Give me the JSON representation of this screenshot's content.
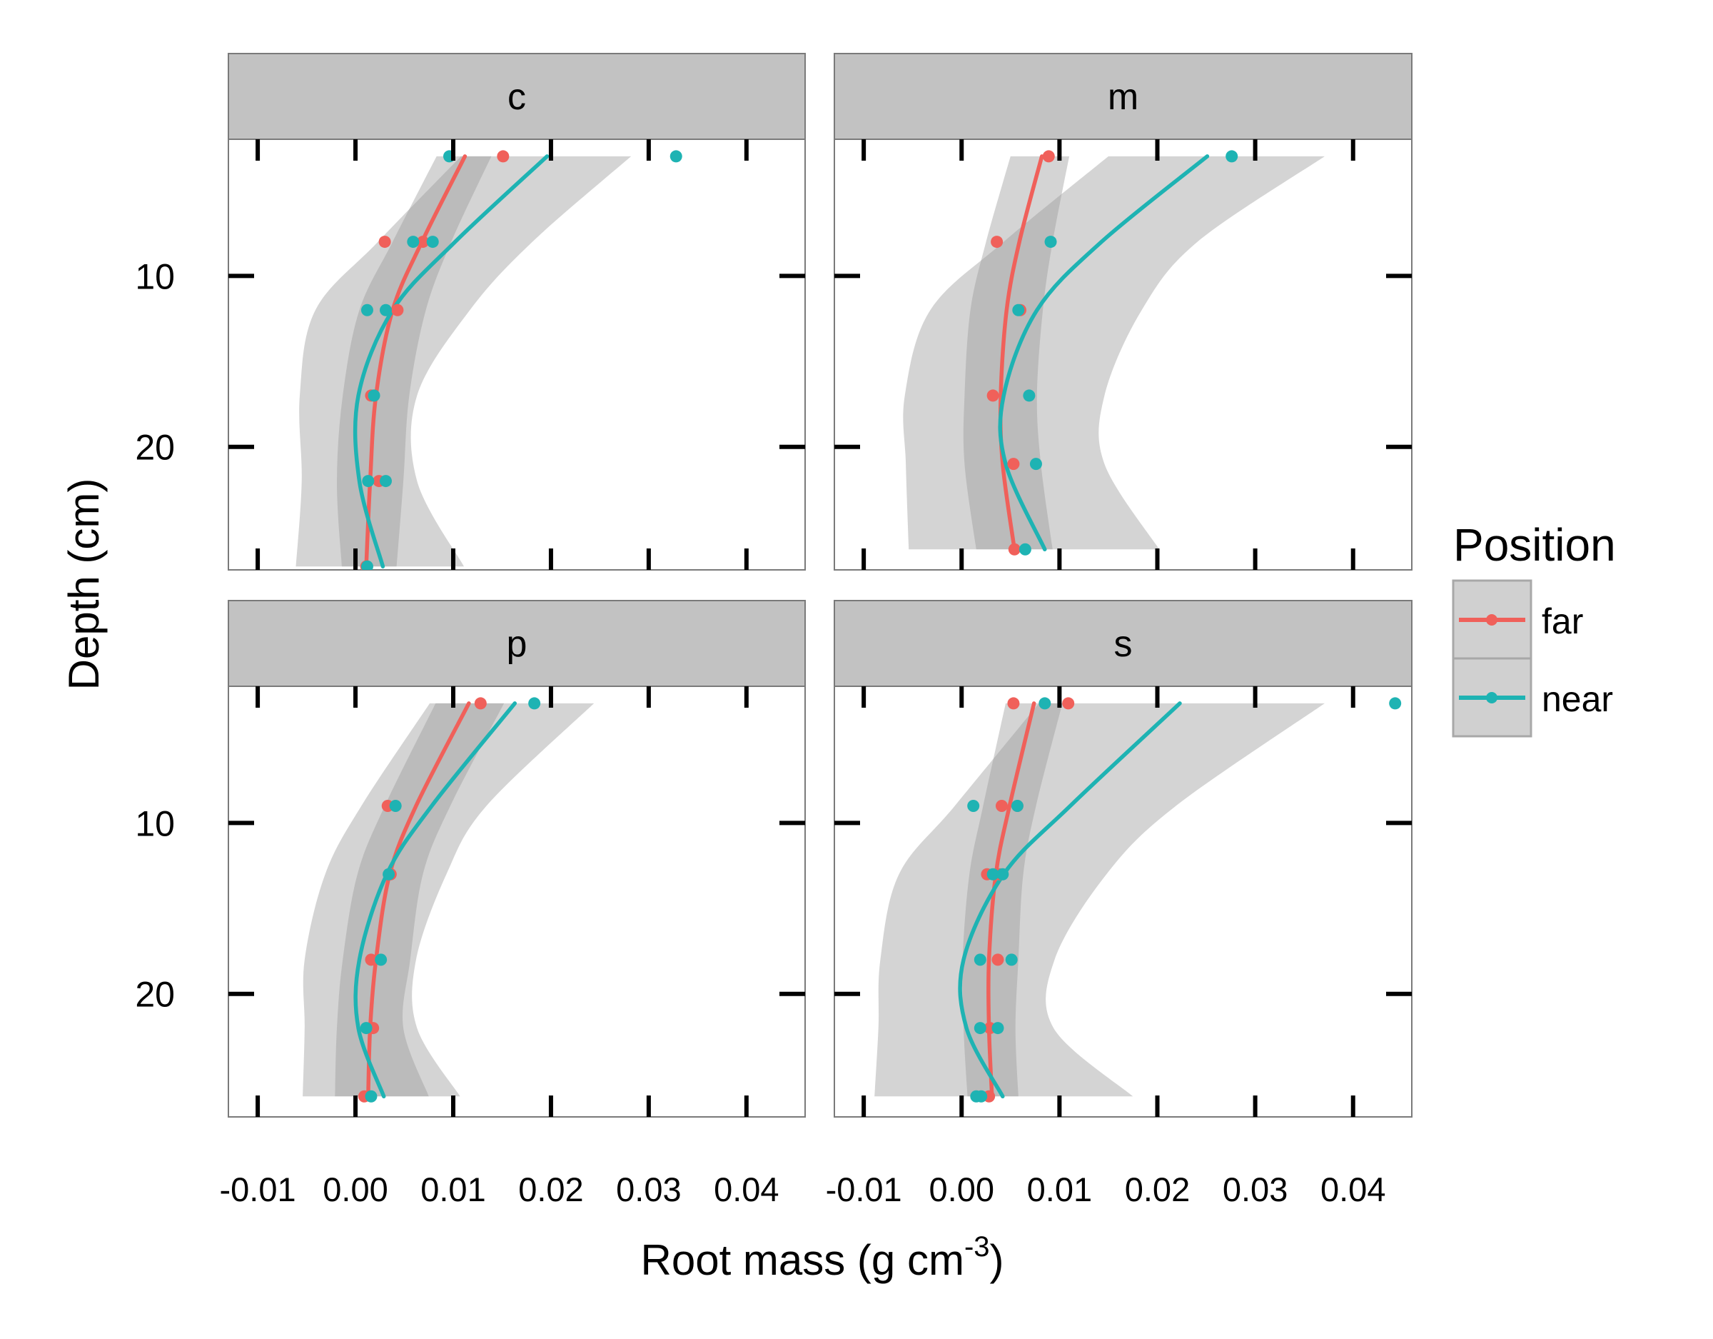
{
  "chart_data": {
    "type": "scatter",
    "xlabel_main": "Root mass (g cm",
    "xlabel_sup": "-3",
    "xlabel_close": ")",
    "ylabel": "Depth (cm)",
    "xlim": [
      -0.013,
      0.046
    ],
    "ylim": [
      2,
      27.2
    ],
    "y_reversed": true,
    "x_ticks": [
      -0.01,
      0.0,
      0.01,
      0.02,
      0.03,
      0.04
    ],
    "x_tick_labels": [
      "-0.01",
      "0.00",
      "0.01",
      "0.02",
      "0.03",
      "0.04"
    ],
    "y_ticks": [
      10,
      20
    ],
    "y_tick_labels": [
      "10",
      "20"
    ],
    "legend": {
      "title": "Position",
      "placement": "right",
      "entries": [
        {
          "label": "far",
          "color": "#F0605A"
        },
        {
          "label": "near",
          "color": "#1EB3B3"
        }
      ]
    },
    "colors": {
      "far": "#F0605A",
      "near": "#1EB3B3",
      "ribbon": "#999999",
      "strip": "#C2C2C2"
    },
    "panels": [
      {
        "label": "c",
        "far": {
          "points": [
            [
              0.0151,
              3
            ],
            [
              0.003,
              8
            ],
            [
              0.0069,
              8
            ],
            [
              0.0043,
              12
            ],
            [
              0.0016,
              17
            ],
            [
              0.0024,
              22
            ],
            [
              0.0011,
              27
            ]
          ],
          "fit": [
            [
              0.0112,
              3
            ],
            [
              0.0068,
              8
            ],
            [
              0.0038,
              12
            ],
            [
              0.0021,
              17
            ],
            [
              0.0015,
              22
            ],
            [
              0.0011,
              27
            ]
          ],
          "ribbon": [
            [
              0.0083,
              0.0139
            ],
            [
              0.0038,
              0.0098
            ],
            [
              0.0004,
              0.0072
            ],
            [
              -0.0013,
              0.0055
            ],
            [
              -0.0019,
              0.0049
            ],
            [
              -0.0014,
              0.0042
            ]
          ]
        },
        "near": {
          "points": [
            [
              0.0096,
              3
            ],
            [
              0.0328,
              3
            ],
            [
              0.0059,
              8
            ],
            [
              0.0079,
              8
            ],
            [
              0.0012,
              12
            ],
            [
              0.0031,
              12
            ],
            [
              0.0019,
              17
            ],
            [
              0.0013,
              22
            ],
            [
              0.0031,
              22
            ],
            [
              0.0012,
              27
            ]
          ],
          "fit": [
            [
              0.0196,
              3
            ],
            [
              0.0102,
              8
            ],
            [
              0.0038,
              12
            ],
            [
              0.0003,
              17
            ],
            [
              0.0004,
              22
            ],
            [
              0.0028,
              27
            ]
          ],
          "ribbon": [
            [
              0.0108,
              0.0282
            ],
            [
              0.0023,
              0.0181
            ],
            [
              -0.0041,
              0.0117
            ],
            [
              -0.0057,
              0.0063
            ],
            [
              -0.0055,
              0.0063
            ],
            [
              -0.0061,
              0.0111
            ]
          ]
        }
      },
      {
        "label": "m",
        "far": {
          "points": [
            [
              0.0089,
              3
            ],
            [
              0.0036,
              8
            ],
            [
              0.006,
              12
            ],
            [
              0.0032,
              17
            ],
            [
              0.0053,
              21
            ],
            [
              0.0054,
              26
            ]
          ],
          "fit": [
            [
              0.0082,
              3
            ],
            [
              0.0059,
              8
            ],
            [
              0.0046,
              12
            ],
            [
              0.004,
              17
            ],
            [
              0.0042,
              21
            ],
            [
              0.0054,
              26
            ]
          ],
          "ribbon": [
            [
              0.005,
              0.011
            ],
            [
              0.0025,
              0.0093
            ],
            [
              0.0009,
              0.0083
            ],
            [
              0.0003,
              0.0077
            ],
            [
              0.0003,
              0.0081
            ],
            [
              0.0015,
              0.0093
            ]
          ]
        },
        "near": {
          "points": [
            [
              0.0276,
              3
            ],
            [
              0.0091,
              8
            ],
            [
              0.0058,
              12
            ],
            [
              0.0069,
              17
            ],
            [
              0.0076,
              21
            ],
            [
              0.0065,
              26
            ]
          ],
          "fit": [
            [
              0.0251,
              3
            ],
            [
              0.0143,
              8
            ],
            [
              0.0077,
              12
            ],
            [
              0.0043,
              17
            ],
            [
              0.0045,
              21
            ],
            [
              0.0085,
              26
            ]
          ],
          "ribbon": [
            [
              0.015,
              0.0371
            ],
            [
              0.0043,
              0.0241
            ],
            [
              -0.0032,
              0.0184
            ],
            [
              -0.0058,
              0.0146
            ],
            [
              -0.0057,
              0.0146
            ],
            [
              -0.0054,
              0.0202
            ]
          ]
        }
      },
      {
        "label": "p",
        "far": {
          "points": [
            [
              0.0128,
              3
            ],
            [
              0.0033,
              9
            ],
            [
              0.0036,
              13
            ],
            [
              0.0016,
              18
            ],
            [
              0.0018,
              22
            ],
            [
              0.0009,
              26
            ]
          ],
          "fit": [
            [
              0.0116,
              3
            ],
            [
              0.0062,
              9
            ],
            [
              0.0035,
              13
            ],
            [
              0.0021,
              18
            ],
            [
              0.0015,
              22
            ],
            [
              0.0013,
              26
            ]
          ],
          "ribbon": [
            [
              0.0082,
              0.0152
            ],
            [
              0.003,
              0.0097
            ],
            [
              0.0002,
              0.0069
            ],
            [
              -0.0013,
              0.0056
            ],
            [
              -0.0019,
              0.0049
            ],
            [
              -0.0021,
              0.0075
            ]
          ]
        },
        "near": {
          "points": [
            [
              0.0183,
              3
            ],
            [
              0.0041,
              9
            ],
            [
              0.0034,
              13
            ],
            [
              0.0026,
              18
            ],
            [
              0.0011,
              22
            ],
            [
              0.0016,
              26
            ]
          ],
          "fit": [
            [
              0.0163,
              3
            ],
            [
              0.0078,
              9
            ],
            [
              0.0032,
              13
            ],
            [
              0.0004,
              18
            ],
            [
              0.0003,
              22
            ],
            [
              0.0029,
              26
            ]
          ],
          "ribbon": [
            [
              0.0076,
              0.0244
            ],
            [
              0.0006,
              0.0134
            ],
            [
              -0.0031,
              0.0093
            ],
            [
              -0.0052,
              0.0062
            ],
            [
              -0.0052,
              0.0063
            ],
            [
              -0.0054,
              0.0107
            ]
          ]
        }
      },
      {
        "label": "s",
        "far": {
          "points": [
            [
              0.0053,
              3
            ],
            [
              0.0109,
              3
            ],
            [
              0.0041,
              9
            ],
            [
              0.0057,
              9
            ],
            [
              0.0026,
              13
            ],
            [
              0.0039,
              13
            ],
            [
              0.0037,
              18
            ],
            [
              0.0029,
              22
            ],
            [
              0.0028,
              26
            ]
          ],
          "fit": [
            [
              0.0074,
              3
            ],
            [
              0.0049,
              9
            ],
            [
              0.0035,
              13
            ],
            [
              0.0028,
              18
            ],
            [
              0.0028,
              22
            ],
            [
              0.0031,
              26
            ]
          ],
          "ribbon": [
            [
              0.0045,
              0.0103
            ],
            [
              0.0022,
              0.0076
            ],
            [
              0.0008,
              0.0063
            ],
            [
              0.0001,
              0.0058
            ],
            [
              0.0002,
              0.0055
            ],
            [
              0.0006,
              0.0058
            ]
          ]
        },
        "near": {
          "points": [
            [
              0.0085,
              3
            ],
            [
              0.0443,
              3
            ],
            [
              0.0012,
              9
            ],
            [
              0.0057,
              9
            ],
            [
              0.0032,
              13
            ],
            [
              0.0042,
              13
            ],
            [
              0.0019,
              18
            ],
            [
              0.0051,
              18
            ],
            [
              0.0019,
              22
            ],
            [
              0.0037,
              22
            ],
            [
              0.0015,
              26
            ],
            [
              0.002,
              26
            ]
          ],
          "fit": [
            [
              0.0223,
              3
            ],
            [
              0.0111,
              9
            ],
            [
              0.0043,
              13
            ],
            [
              0.0002,
              18
            ],
            [
              0.0005,
              22
            ],
            [
              0.0042,
              26
            ]
          ],
          "ribbon": [
            [
              0.0079,
              0.0371
            ],
            [
              -0.0007,
              0.0219
            ],
            [
              -0.0064,
              0.0148
            ],
            [
              -0.0083,
              0.0095
            ],
            [
              -0.0085,
              0.0094
            ],
            [
              -0.0089,
              0.0175
            ]
          ]
        }
      }
    ]
  }
}
